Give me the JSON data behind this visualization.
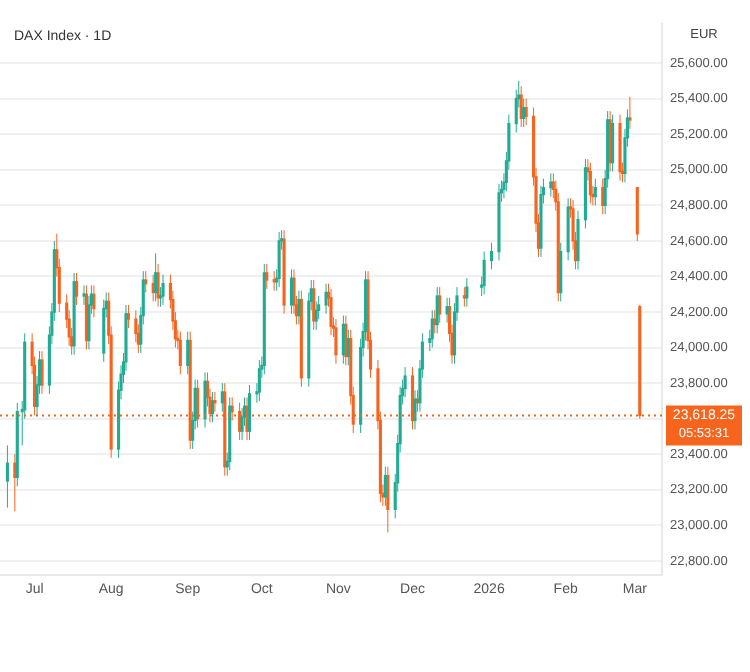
{
  "chart_data": {
    "type": "candlestick",
    "title": "DAX Index · 1D",
    "annotations": [
      "EUR",
      "05:53:31"
    ],
    "series": [
      {
        "color": "#22ab94",
        "x": [
          "2025-06-20",
          "2025-06-24",
          "2025-06-26",
          "2025-06-27",
          "2025-07-02",
          "2025-07-03",
          "2025-07-07",
          "2025-07-08",
          "2025-07-09",
          "2025-07-17",
          "2025-07-21",
          "2025-07-23",
          "2025-07-24",
          "2025-07-29",
          "2025-07-30",
          "2025-08-04",
          "2025-08-05",
          "2025-08-06",
          "2025-08-07",
          "2025-08-13",
          "2025-08-14",
          "2025-08-19",
          "2025-08-21",
          "2025-08-22",
          "2025-09-01",
          "2025-09-03",
          "2025-09-04",
          "2025-09-08",
          "2025-09-11",
          "2025-09-15",
          "2025-09-17",
          "2025-09-18",
          "2025-09-23",
          "2025-09-24",
          "2025-09-26",
          "2025-09-29",
          "2025-09-30",
          "2025-10-01",
          "2025-10-02",
          "2025-10-07",
          "2025-10-08",
          "2025-10-09",
          "2025-10-13",
          "2025-10-16",
          "2025-10-20",
          "2025-10-21",
          "2025-10-23",
          "2025-10-24",
          "2025-10-27",
          "2025-11-03",
          "2025-11-05",
          "2025-11-10",
          "2025-11-11",
          "2025-11-12",
          "2025-11-20",
          "2025-11-24",
          "2025-11-25",
          "2025-11-26",
          "2025-11-27",
          "2025-11-28",
          "2025-12-02",
          "2025-12-04",
          "2025-12-05",
          "2025-12-08",
          "2025-12-09",
          "2025-12-11",
          "2025-12-15",
          "2025-12-18",
          "2025-12-19",
          "2025-12-23",
          "2025-12-29",
          "2025-12-30",
          "2026-01-02",
          "2026-01-05",
          "2026-01-06",
          "2026-01-07",
          "2026-01-08",
          "2026-01-09",
          "2026-01-12",
          "2026-01-13",
          "2026-01-15",
          "2026-01-22",
          "2026-01-23",
          "2026-01-26",
          "2026-01-30",
          "2026-02-02",
          "2026-02-06",
          "2026-02-09",
          "2026-02-13",
          "2026-02-17",
          "2026-02-18",
          "2026-02-20",
          "2026-02-25",
          "2026-02-26"
        ],
        "ohlc": [
          [
            23250,
            23450,
            23100,
            23350
          ],
          [
            23270,
            23690,
            23220,
            23640
          ],
          [
            23640,
            23700,
            23450,
            23650
          ],
          [
            23650,
            24080,
            23600,
            24030
          ],
          [
            23670,
            23840,
            23620,
            23790
          ],
          [
            23790,
            23980,
            23740,
            23930
          ],
          [
            23790,
            24120,
            23740,
            24070
          ],
          [
            24070,
            24250,
            24020,
            24200
          ],
          [
            24200,
            24600,
            24150,
            24550
          ],
          [
            24010,
            24420,
            23960,
            24370
          ],
          [
            24290,
            24350,
            24240,
            24300
          ],
          [
            24040,
            24290,
            23990,
            24240
          ],
          [
            24240,
            24350,
            24190,
            24300
          ],
          [
            23970,
            24270,
            23920,
            24220
          ],
          [
            24220,
            24310,
            24170,
            24260
          ],
          [
            23430,
            23810,
            23380,
            23760
          ],
          [
            23760,
            23900,
            23710,
            23850
          ],
          [
            23850,
            23970,
            23800,
            23920
          ],
          [
            23920,
            24240,
            23870,
            24190
          ],
          [
            24020,
            24230,
            23970,
            24180
          ],
          [
            24180,
            24430,
            24130,
            24380
          ],
          [
            24310,
            24530,
            24260,
            24420
          ],
          [
            24280,
            24340,
            24230,
            24290
          ],
          [
            24290,
            24410,
            24240,
            24360
          ],
          [
            23900,
            24090,
            23850,
            24040
          ],
          [
            23480,
            23640,
            23430,
            23590
          ],
          [
            23590,
            23820,
            23540,
            23770
          ],
          [
            23600,
            23860,
            23550,
            23810
          ],
          [
            23630,
            23750,
            23580,
            23700
          ],
          [
            23690,
            23800,
            23640,
            23750
          ],
          [
            23330,
            23410,
            23280,
            23360
          ],
          [
            23360,
            23720,
            23310,
            23670
          ],
          [
            23530,
            23660,
            23480,
            23610
          ],
          [
            23610,
            23720,
            23560,
            23670
          ],
          [
            23530,
            23790,
            23480,
            23740
          ],
          [
            23740,
            23800,
            23690,
            23750
          ],
          [
            23750,
            23930,
            23700,
            23880
          ],
          [
            23880,
            23950,
            23830,
            23900
          ],
          [
            23900,
            24470,
            23850,
            24420
          ],
          [
            24370,
            24440,
            24320,
            24390
          ],
          [
            24390,
            24650,
            24340,
            24600
          ],
          [
            24600,
            24660,
            24550,
            24610
          ],
          [
            24240,
            24440,
            24190,
            24390
          ],
          [
            24180,
            24320,
            24130,
            24270
          ],
          [
            23830,
            24310,
            23780,
            24260
          ],
          [
            24260,
            24380,
            24210,
            24330
          ],
          [
            24150,
            24260,
            24100,
            24210
          ],
          [
            24210,
            24290,
            24160,
            24240
          ],
          [
            24240,
            24360,
            24190,
            24310
          ],
          [
            23960,
            24180,
            23910,
            24130
          ],
          [
            23950,
            24100,
            23900,
            24050
          ],
          [
            23570,
            24050,
            23520,
            24000
          ],
          [
            24000,
            24140,
            23950,
            24090
          ],
          [
            24090,
            24430,
            24040,
            24380
          ],
          [
            23160,
            23330,
            23110,
            23280
          ],
          [
            23090,
            23290,
            23040,
            23240
          ],
          [
            23240,
            23510,
            23190,
            23460
          ],
          [
            23460,
            23780,
            23410,
            23730
          ],
          [
            23730,
            23820,
            23680,
            23770
          ],
          [
            23770,
            23890,
            23720,
            23840
          ],
          [
            23590,
            23760,
            23540,
            23710
          ],
          [
            23690,
            23930,
            23640,
            23880
          ],
          [
            23880,
            24080,
            23830,
            24030
          ],
          [
            24030,
            24100,
            23980,
            24050
          ],
          [
            24050,
            24210,
            24000,
            24160
          ],
          [
            24130,
            24340,
            24080,
            24290
          ],
          [
            24190,
            24280,
            24140,
            24230
          ],
          [
            23960,
            24250,
            23910,
            24200
          ],
          [
            24200,
            24340,
            24150,
            24290
          ],
          [
            24280,
            24390,
            24230,
            24340
          ],
          [
            24340,
            24400,
            24290,
            24350
          ],
          [
            24350,
            24540,
            24300,
            24490
          ],
          [
            24490,
            24590,
            24440,
            24540
          ],
          [
            24540,
            24920,
            24490,
            24870
          ],
          [
            24870,
            24940,
            24820,
            24890
          ],
          [
            24890,
            24980,
            24840,
            24930
          ],
          [
            24930,
            25100,
            24880,
            25050
          ],
          [
            25050,
            25310,
            25000,
            25260
          ],
          [
            25260,
            25450,
            25210,
            25400
          ],
          [
            25400,
            25500,
            25350,
            25420
          ],
          [
            25290,
            25400,
            25240,
            25350
          ],
          [
            24560,
            24910,
            24510,
            24860
          ],
          [
            24860,
            24950,
            24810,
            24900
          ],
          [
            24900,
            24980,
            24850,
            24930
          ],
          [
            24310,
            24590,
            24260,
            24540
          ],
          [
            24540,
            24840,
            24490,
            24790
          ],
          [
            24490,
            24770,
            24440,
            24720
          ],
          [
            24720,
            25060,
            24670,
            25010
          ],
          [
            24850,
            24950,
            24800,
            24900
          ],
          [
            24800,
            25000,
            24750,
            24950
          ],
          [
            24950,
            25330,
            24900,
            25280
          ],
          [
            25040,
            25310,
            24990,
            25260
          ],
          [
            24980,
            25230,
            24930,
            25180
          ],
          [
            25180,
            25340,
            25130,
            25290
          ]
        ]
      },
      {
        "color": "#f7641e",
        "x": [
          "2025-06-23",
          "2025-06-30",
          "2025-07-01",
          "2025-07-04",
          "2025-07-10",
          "2025-07-11",
          "2025-07-14",
          "2025-07-15",
          "2025-07-16",
          "2025-07-18",
          "2025-07-22",
          "2025-07-25",
          "2025-07-31",
          "2025-08-01",
          "2025-08-08",
          "2025-08-11",
          "2025-08-12",
          "2025-08-15",
          "2025-08-18",
          "2025-08-20",
          "2025-08-25",
          "2025-08-26",
          "2025-08-27",
          "2025-08-28",
          "2025-08-29",
          "2025-09-02",
          "2025-09-05",
          "2025-09-09",
          "2025-09-10",
          "2025-09-12",
          "2025-09-16",
          "2025-09-19",
          "2025-09-22",
          "2025-09-25",
          "2025-10-03",
          "2025-10-06",
          "2025-10-10",
          "2025-10-14",
          "2025-10-15",
          "2025-10-17",
          "2025-10-22",
          "2025-10-28",
          "2025-10-29",
          "2025-10-30",
          "2025-10-31",
          "2025-11-04",
          "2025-11-06",
          "2025-11-07",
          "2025-11-13",
          "2025-11-14",
          "2025-11-17",
          "2025-11-18",
          "2025-11-19",
          "2025-11-21",
          "2025-12-01",
          "2025-12-03",
          "2025-12-10",
          "2025-12-12",
          "2025-12-16",
          "2025-12-17",
          "2025-12-22",
          "2026-01-14",
          "2026-01-16",
          "2026-01-19",
          "2026-01-20",
          "2026-01-21",
          "2026-01-27",
          "2026-01-28",
          "2026-01-29",
          "2026-02-03",
          "2026-02-04",
          "2026-02-05",
          "2026-02-10",
          "2026-02-11",
          "2026-02-12",
          "2026-02-16",
          "2026-02-19",
          "2026-02-23",
          "2026-02-24",
          "2026-02-27",
          "2026-03-02",
          "2026-03-03"
        ],
        "ohlc": [
          [
            23350,
            23400,
            23080,
            23270
          ],
          [
            24030,
            24080,
            23850,
            23900
          ],
          [
            23900,
            23950,
            23620,
            23670
          ],
          [
            23930,
            23980,
            23740,
            23790
          ],
          [
            24550,
            24640,
            24400,
            24450
          ],
          [
            24450,
            24500,
            24200,
            24250
          ],
          [
            24250,
            24300,
            24110,
            24160
          ],
          [
            24160,
            24210,
            24010,
            24060
          ],
          [
            24060,
            24110,
            23960,
            24010
          ],
          [
            24370,
            24420,
            24240,
            24290
          ],
          [
            24300,
            24350,
            23990,
            24040
          ],
          [
            24300,
            24350,
            24170,
            24220
          ],
          [
            24260,
            24310,
            24020,
            24070
          ],
          [
            24070,
            24120,
            23380,
            23430
          ],
          [
            24190,
            24240,
            24110,
            24160
          ],
          [
            24160,
            24210,
            24030,
            24080
          ],
          [
            24080,
            24130,
            23970,
            24020
          ],
          [
            24380,
            24430,
            24310,
            24360
          ],
          [
            24360,
            24410,
            24260,
            24310
          ],
          [
            24420,
            24470,
            24230,
            24280
          ],
          [
            24360,
            24410,
            24220,
            24270
          ],
          [
            24270,
            24320,
            24100,
            24150
          ],
          [
            24150,
            24200,
            24000,
            24050
          ],
          [
            24050,
            24100,
            23990,
            24040
          ],
          [
            24040,
            24090,
            23850,
            23900
          ],
          [
            24040,
            24090,
            23430,
            23480
          ],
          [
            23770,
            23820,
            23550,
            23600
          ],
          [
            23810,
            23860,
            23670,
            23720
          ],
          [
            23720,
            23770,
            23580,
            23630
          ],
          [
            23700,
            23750,
            23640,
            23690
          ],
          [
            23750,
            23800,
            23280,
            23330
          ],
          [
            23670,
            23720,
            23590,
            23640
          ],
          [
            23640,
            23690,
            23480,
            23530
          ],
          [
            23670,
            23720,
            23480,
            23530
          ],
          [
            24420,
            24470,
            24330,
            24380
          ],
          [
            24380,
            24430,
            24320,
            24370
          ],
          [
            24610,
            24660,
            24190,
            24240
          ],
          [
            24390,
            24440,
            24190,
            24240
          ],
          [
            24240,
            24290,
            24130,
            24180
          ],
          [
            24270,
            24320,
            23780,
            23830
          ],
          [
            24330,
            24380,
            24100,
            24150
          ],
          [
            24310,
            24360,
            24230,
            24280
          ],
          [
            24280,
            24330,
            24070,
            24120
          ],
          [
            24120,
            24170,
            24060,
            24110
          ],
          [
            24110,
            24160,
            23910,
            23960
          ],
          [
            24130,
            24180,
            23900,
            23950
          ],
          [
            24050,
            24100,
            23680,
            23730
          ],
          [
            23730,
            23780,
            23520,
            23570
          ],
          [
            24380,
            24430,
            23990,
            24040
          ],
          [
            24040,
            24090,
            23830,
            23880
          ],
          [
            23880,
            23930,
            23540,
            23590
          ],
          [
            23590,
            23640,
            23130,
            23180
          ],
          [
            23180,
            23230,
            23110,
            23160
          ],
          [
            23280,
            23330,
            22960,
            23090
          ],
          [
            23840,
            23890,
            23540,
            23590
          ],
          [
            23710,
            23760,
            23640,
            23690
          ],
          [
            24160,
            24210,
            24080,
            24130
          ],
          [
            24290,
            24340,
            24140,
            24190
          ],
          [
            24230,
            24280,
            24030,
            24080
          ],
          [
            24080,
            24130,
            23910,
            23960
          ],
          [
            24290,
            24340,
            24230,
            24280
          ],
          [
            25420,
            25470,
            25240,
            25290
          ],
          [
            25350,
            25400,
            25250,
            25300
          ],
          [
            25300,
            25350,
            24910,
            24960
          ],
          [
            24960,
            25010,
            24650,
            24700
          ],
          [
            24700,
            24750,
            24510,
            24560
          ],
          [
            24930,
            24980,
            24840,
            24890
          ],
          [
            24890,
            24940,
            24770,
            24820
          ],
          [
            24820,
            24870,
            24260,
            24310
          ],
          [
            24790,
            24840,
            24730,
            24780
          ],
          [
            24780,
            24830,
            24550,
            24600
          ],
          [
            24600,
            24650,
            24440,
            24490
          ],
          [
            25010,
            25060,
            24940,
            24990
          ],
          [
            24990,
            25040,
            24810,
            24860
          ],
          [
            24860,
            24910,
            24800,
            24850
          ],
          [
            24900,
            24950,
            24750,
            24800
          ],
          [
            25280,
            25330,
            24990,
            25040
          ],
          [
            25260,
            25310,
            24940,
            24990
          ],
          [
            24990,
            25040,
            24930,
            24980
          ],
          [
            25290,
            25410,
            25230,
            25280
          ],
          [
            24900,
            24900,
            24600,
            24640
          ],
          [
            24230,
            24240,
            23600,
            23618.25
          ]
        ]
      }
    ],
    "xlim": [
      "2025-06-17",
      "2026-03-12"
    ],
    "xticks": [
      {
        "value": "2025-07-01",
        "label": "Jul"
      },
      {
        "value": "2025-08-01",
        "label": "Aug"
      },
      {
        "value": "2025-09-01",
        "label": "Sep"
      },
      {
        "value": "2025-10-01",
        "label": "Oct"
      },
      {
        "value": "2025-11-01",
        "label": "Nov"
      },
      {
        "value": "2025-12-01",
        "label": "Dec"
      },
      {
        "value": "2026-01-01",
        "label": "2026"
      },
      {
        "value": "2026-02-01",
        "label": "Feb"
      },
      {
        "value": "2026-03-01",
        "label": "Mar"
      }
    ],
    "ylim": [
      22720,
      25820
    ],
    "yticks": [
      {
        "value": 22800,
        "label": "22,800.00"
      },
      {
        "value": 23000,
        "label": "23,000.00"
      },
      {
        "value": 23200,
        "label": "23,200.00"
      },
      {
        "value": 23400,
        "label": "23,400.00"
      },
      {
        "value": 23600,
        "label": null
      },
      {
        "value": 23800,
        "label": "23,800.00"
      },
      {
        "value": 24000,
        "label": "24,000.00"
      },
      {
        "value": 24200,
        "label": "24,200.00"
      },
      {
        "value": 24400,
        "label": "24,400.00"
      },
      {
        "value": 24600,
        "label": "24,600.00"
      },
      {
        "value": 24800,
        "label": "24,800.00"
      },
      {
        "value": 25000,
        "label": "25,000.00"
      },
      {
        "value": 25200,
        "label": "25,200.00"
      },
      {
        "value": 25400,
        "label": "25,400.00"
      },
      {
        "value": 25600,
        "label": "25,600.00"
      }
    ],
    "grid": "y",
    "ref_lines": [
      {
        "axis": "y",
        "value": 23618.25,
        "label": "23,618.25",
        "color": "#f7641e",
        "line_style": "dotted"
      }
    ]
  }
}
